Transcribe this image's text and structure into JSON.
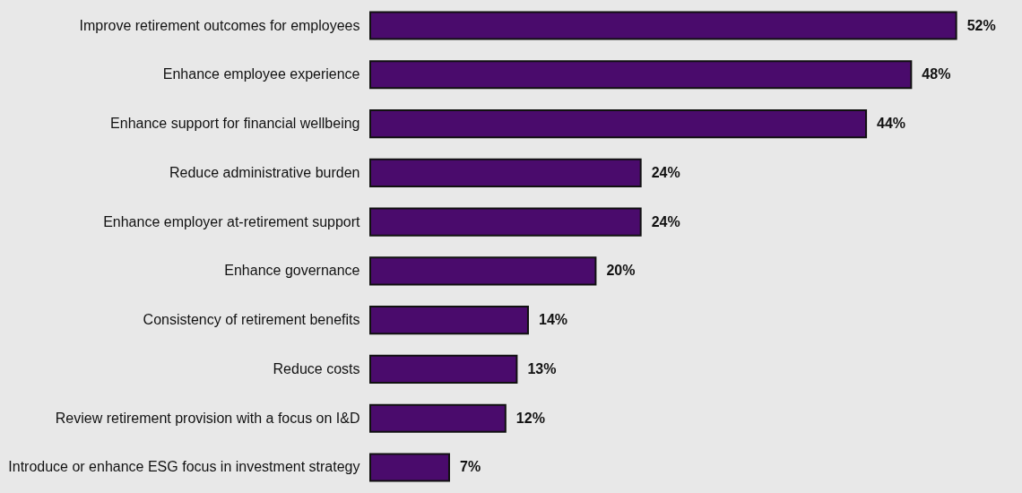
{
  "chart_data": {
    "type": "bar",
    "orientation": "horizontal",
    "value_labels": [
      "52%",
      "48%",
      "44%",
      "24%",
      "24%",
      "20%",
      "14%",
      "13%",
      "12%",
      "7%"
    ],
    "categories": [
      "Improve retirement outcomes for employees",
      "Enhance employee experience",
      "Enhance support for financial wellbeing",
      "Reduce administrative burden",
      "Enhance employer at-retirement support",
      "Enhance governance",
      "Consistency of retirement benefits",
      "Reduce costs",
      "Review retirement provision with a focus on I&D",
      "Introduce or enhance ESG focus in investment strategy"
    ],
    "values": [
      52,
      48,
      44,
      24,
      24,
      20,
      14,
      13,
      12,
      7
    ],
    "color": "#4a0b6c"
  }
}
